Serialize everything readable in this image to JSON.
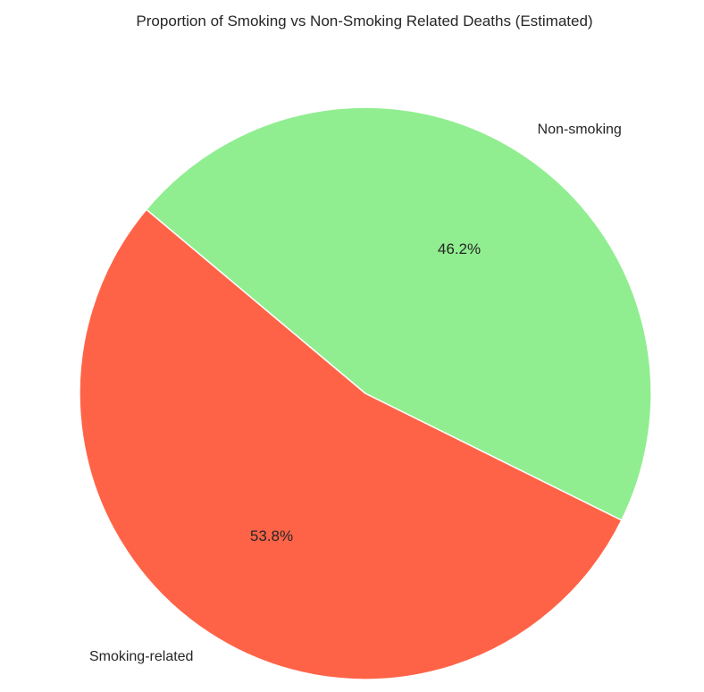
{
  "chart_data": {
    "type": "pie",
    "title": "Proportion of Smoking vs Non-Smoking Related Deaths (Estimated)",
    "slices": [
      {
        "label": "Smoking-related",
        "value": 53.8,
        "pct_label": "53.8%",
        "color": "#ff6347"
      },
      {
        "label": "Non-smoking",
        "value": 46.2,
        "pct_label": "46.2%",
        "color": "#90ee90"
      }
    ],
    "start_angle_deg": 140,
    "direction": "counterclockwise",
    "wedge_edge_color": "#ffffff"
  }
}
